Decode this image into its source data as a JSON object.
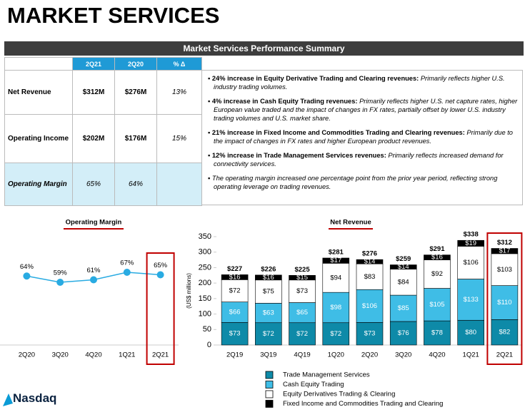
{
  "header": {
    "title": "MARKET SERVICES"
  },
  "table": {
    "title": "Market Services Performance Summary",
    "columns": [
      "2Q21",
      "2Q20",
      "% Δ"
    ],
    "rows": [
      [
        "Net Revenue",
        "$312M",
        "$276M",
        "13%"
      ],
      [
        "Operating Income",
        "$202M",
        "$176M",
        "15%"
      ],
      [
        "Operating Margin",
        "65%",
        "64%"
      ]
    ]
  },
  "bullets": [
    {
      "bold": "24% increase in Equity Derivative Trading and Clearing revenues:",
      "text": "Primarily reflects higher U.S. industry trading volumes."
    },
    {
      "bold": "4% increase in Cash Equity Trading revenues:",
      "text": "Primarily reflects higher U.S. net capture rates, higher European value traded and the impact of changes in FX rates, partially offset by lower U.S. industry trading volumes and U.S. market share."
    },
    {
      "bold": "21% increase in Fixed Income and Commodities Trading and Clearing revenues:",
      "text": "Primarily due to the impact of changes in FX rates and higher European product revenues."
    },
    {
      "bold": "12% increase in Trade Management Services revenues:",
      "text": "Primarily reflects increased demand for connectivity services."
    },
    {
      "text": "The operating margin increased one percentage point from the prior year period, reflecting strong operating leverage on trading revenues."
    }
  ],
  "chart_data": [
    {
      "type": "line",
      "title": "Operating Margin",
      "color": "#29abe2",
      "categories": [
        "2Q20",
        "3Q20",
        "4Q20",
        "1Q21",
        "2Q21"
      ],
      "values": [
        64,
        59,
        61,
        67,
        65
      ],
      "value_labels": [
        "64%",
        "59%",
        "61%",
        "67%",
        "65%"
      ]
    },
    {
      "type": "stacked-bar",
      "title": "Net Revenue",
      "y_label": "(US$ millions)",
      "categories": [
        "2Q19",
        "3Q19",
        "4Q19",
        "1Q20",
        "2Q20",
        "3Q20",
        "4Q20",
        "1Q21",
        "2Q21"
      ],
      "ylim": [
        0,
        350
      ],
      "yticks": [
        0,
        50,
        100,
        150,
        200,
        250,
        300,
        350
      ],
      "series": [
        {
          "name": "Trade Management Services",
          "color": "#0e8aa8",
          "values": [
            73,
            72,
            72,
            72,
            73,
            76,
            78,
            80,
            82
          ],
          "value_labels": [
            "$73",
            "$72",
            "$72",
            "$72",
            "$73",
            "$76",
            "$78",
            "$80",
            "$82"
          ]
        },
        {
          "name": "Cash Equity Trading",
          "color": "#3fbde6",
          "values": [
            66,
            63,
            65,
            98,
            106,
            85,
            105,
            133,
            110
          ],
          "value_labels": [
            "$66",
            "$63",
            "$65",
            "$98",
            "$106",
            "$85",
            "$105",
            "$133",
            "$110"
          ]
        },
        {
          "name": "Equity Derivatives Trading & Clearing",
          "color": "#ffffff",
          "values": [
            72,
            75,
            73,
            94,
            83,
            84,
            92,
            106,
            103
          ],
          "value_labels": [
            "$72",
            "$75",
            "$73",
            "$94",
            "$83",
            "$84",
            "$92",
            "$106",
            "$103"
          ]
        },
        {
          "name": "Fixed Income and Commodities Trading and Clearing",
          "color": "#000000",
          "values": [
            16,
            16,
            15,
            17,
            14,
            14,
            16,
            19,
            17
          ],
          "value_labels": [
            "$16",
            "$16",
            "$15",
            "$17",
            "$14",
            "$14",
            "$16",
            "$19",
            "$17"
          ]
        }
      ],
      "total_values": [
        227,
        226,
        225,
        281,
        276,
        259,
        291,
        338,
        312
      ],
      "total_labels": [
        "$227",
        "$226",
        "$225",
        "$281",
        "$276",
        "$259",
        "$291",
        "$338",
        "$312"
      ]
    }
  ],
  "footer": {
    "logo": "Nasdaq"
  }
}
